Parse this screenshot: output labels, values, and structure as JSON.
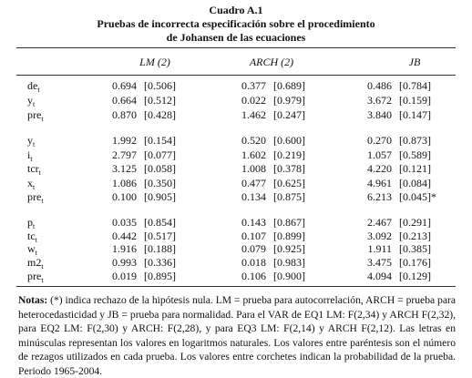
{
  "header": {
    "title": "Cuadro A.1",
    "subtitle": [
      "Pruebas de incorrecta especificación sobre el procedimiento",
      "de Johansen de las ecuaciones"
    ]
  },
  "table": {
    "columns": [
      "LM (2)",
      "ARCH (2)",
      "JB"
    ],
    "groups": [
      {
        "rows": [
          {
            "var": "de",
            "sub": "t",
            "cells": [
              "0.694",
              "[0.506]",
              "0.377",
              "[0.689]",
              "0.486",
              "[0.784]"
            ]
          },
          {
            "var": "y",
            "sub": "t",
            "cells": [
              "0.664",
              "[0.512]",
              "0.022",
              "[0.979]",
              "3.672",
              "[0.159]"
            ]
          },
          {
            "var": "pre",
            "sub": "t",
            "cells": [
              "0.870",
              "[0.428]",
              "1.462",
              "[0.247]",
              "3.840",
              "[0.147]"
            ]
          }
        ]
      },
      {
        "rows": [
          {
            "var": "y",
            "sub": "t",
            "cells": [
              "1.992",
              "[0.154]",
              "0.520",
              "[0.600]",
              "0.270",
              "[0.873]"
            ]
          },
          {
            "var": "i",
            "sub": "t",
            "cells": [
              "2.797",
              "[0.077]",
              "1.602",
              "[0.219]",
              "1.057",
              "[0.589]"
            ]
          },
          {
            "var": "tcr",
            "sub": "t",
            "cells": [
              "3.125",
              "[0.058]",
              "1.008",
              "[0.378]",
              "4.220",
              "[0.121]"
            ]
          },
          {
            "var": "x",
            "sub": "t",
            "cells": [
              "1.086",
              "[0.350]",
              "0.477",
              "[0.625]",
              "4.961",
              "[0.084]"
            ]
          },
          {
            "var": "pre",
            "sub": "t",
            "cells": [
              "0.100",
              "[0.905]",
              "0.134",
              "[0.875]",
              "6.213",
              "[0.045]*"
            ]
          }
        ]
      },
      {
        "rows": [
          {
            "var": "p",
            "sub": "t",
            "cells": [
              "0.035",
              "[0.854]",
              "0.143",
              "[0.867]",
              "2.467",
              "[0.291]"
            ]
          },
          {
            "var": "tc",
            "sub": "t",
            "cells": [
              "0.442",
              "[0.517]",
              "0.107",
              "[0.899]",
              "3.092",
              "[0.213]"
            ]
          },
          {
            "var": "w",
            "sub": "t",
            "cells": [
              "1.916",
              "[0.188]",
              "0.079",
              "[0.925]",
              "1.911",
              "[0.385]"
            ]
          },
          {
            "var": "m2",
            "sub": "t",
            "cells": [
              "0.993",
              "[0.336]",
              "0.018",
              "[0.983]",
              "3.475",
              "[0.176]"
            ]
          },
          {
            "var": "pre",
            "sub": "t",
            "cells": [
              "0.019",
              "[0.895]",
              "0.106",
              "[0.900]",
              "4.094",
              "[0.129]"
            ]
          }
        ]
      }
    ]
  },
  "note": {
    "label": "Notas:",
    "text": "(*) indica rechazo de la hipótesis nula. LM = prueba para autocorrelación, ARCH = prueba para heterocedasticidad y JB = prueba para normalidad. Para el VAR de EQ1 LM: F(2,34) y ARCH F(2,32), para EQ2 LM: F(2,30) y ARCH: F(2,28), y para EQ3 LM: F(2,14) y ARCH F(2,12). Las letras en minúsculas representan los valores en logaritmos naturales. Los valores entre paréntesis son el número de rezagos utilizados en cada prueba. Los valores entre corchetes indican la probabilidad de la prueba. Periodo 1965-2004."
  }
}
